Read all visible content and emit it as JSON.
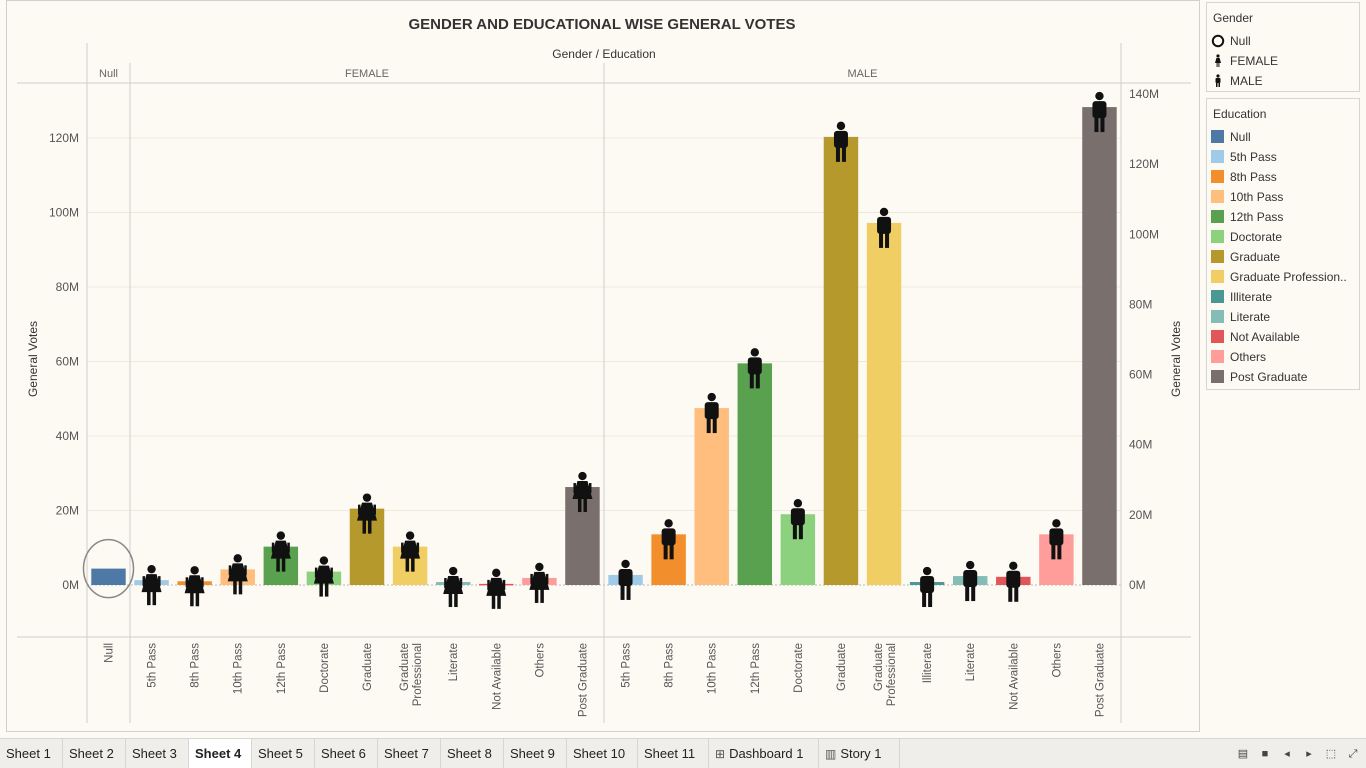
{
  "chart_data": {
    "type": "bar",
    "title": "GENDER AND EDUCATIONAL WISE GENERAL VOTES",
    "header_label": "Gender / Education",
    "ylabel": "General Votes",
    "ylim_left": [
      -13000000,
      130000000
    ],
    "left_ticks": [
      "120M",
      "100M",
      "80M",
      "60M",
      "40M",
      "20M",
      "0M"
    ],
    "left_tick_values": [
      120000000,
      100000000,
      80000000,
      60000000,
      40000000,
      20000000,
      0
    ],
    "right_ticks": [
      "140M",
      "120M",
      "100M",
      "80M",
      "60M",
      "40M",
      "20M",
      "0M"
    ],
    "right_tick_values": [
      140000000,
      120000000,
      100000000,
      80000000,
      60000000,
      40000000,
      20000000,
      0
    ],
    "grid": true,
    "legend_position": "right",
    "panes": [
      {
        "gender": "Null",
        "bars": [
          {
            "education": "Null",
            "label": "Null",
            "value": 4400000,
            "color": "#4e79a7"
          }
        ]
      },
      {
        "gender": "FEMALE",
        "bars": [
          {
            "education": "5th Pass",
            "label": "5th Pass",
            "value": 1300000,
            "color": "#a0cbe8"
          },
          {
            "education": "8th Pass",
            "label": "8th Pass",
            "value": 1000000,
            "color": "#f28e2b"
          },
          {
            "education": "10th Pass",
            "label": "10th Pass",
            "value": 4200000,
            "color": "#ffbe7d"
          },
          {
            "education": "12th Pass",
            "label": "12th Pass",
            "value": 10300000,
            "color": "#59a14f"
          },
          {
            "education": "Doctorate",
            "label": "Doctorate",
            "value": 3600000,
            "color": "#8cd17d"
          },
          {
            "education": "Graduate",
            "label": "Graduate",
            "value": 20500000,
            "color": "#b6992d"
          },
          {
            "education": "Graduate Professional",
            "label": "Graduate Professional",
            "value": 10300000,
            "color": "#f1ce63"
          },
          {
            "education": "Literate",
            "label": "Literate",
            "value": 800000,
            "color": "#86bcb6"
          },
          {
            "education": "Not Available",
            "label": "Not Available",
            "value": 300000,
            "color": "#e15759"
          },
          {
            "education": "Others",
            "label": "Others",
            "value": 1900000,
            "color": "#ff9d9a"
          },
          {
            "education": "Post Graduate",
            "label": "Post Graduate",
            "value": 26300000,
            "color": "#79706e"
          }
        ]
      },
      {
        "gender": "MALE",
        "bars": [
          {
            "education": "5th Pass",
            "label": "5th Pass",
            "value": 2700000,
            "color": "#a0cbe8"
          },
          {
            "education": "8th Pass",
            "label": "8th Pass",
            "value": 13600000,
            "color": "#f28e2b"
          },
          {
            "education": "10th Pass",
            "label": "10th Pass",
            "value": 47500000,
            "color": "#ffbe7d"
          },
          {
            "education": "12th Pass",
            "label": "12th Pass",
            "value": 59500000,
            "color": "#59a14f"
          },
          {
            "education": "Doctorate",
            "label": "Doctorate",
            "value": 19000000,
            "color": "#8cd17d"
          },
          {
            "education": "Graduate",
            "label": "Graduate",
            "value": 120300000,
            "color": "#b6992d"
          },
          {
            "education": "Graduate Professional",
            "label": "Graduate Professional",
            "value": 97200000,
            "color": "#f1ce63"
          },
          {
            "education": "Illiterate",
            "label": "Illiterate",
            "value": 800000,
            "color": "#499894"
          },
          {
            "education": "Literate",
            "label": "Literate",
            "value": 2400000,
            "color": "#86bcb6"
          },
          {
            "education": "Not Available",
            "label": "Not Available",
            "value": 2200000,
            "color": "#e15759"
          },
          {
            "education": "Others",
            "label": "Others",
            "value": 13600000,
            "color": "#ff9d9a"
          },
          {
            "education": "Post Graduate",
            "label": "Post Graduate",
            "value": 128300000,
            "color": "#79706e"
          }
        ]
      }
    ]
  },
  "legend_gender": {
    "title": "Gender",
    "items": [
      {
        "label": "Null",
        "icon": "circle-icon"
      },
      {
        "label": "FEMALE",
        "icon": "female-icon"
      },
      {
        "label": "MALE",
        "icon": "male-icon"
      }
    ]
  },
  "legend_education": {
    "title": "Education",
    "items": [
      {
        "label": "Null",
        "color": "#4e79a7"
      },
      {
        "label": "5th Pass",
        "color": "#a0cbe8"
      },
      {
        "label": "8th Pass",
        "color": "#f28e2b"
      },
      {
        "label": "10th Pass",
        "color": "#ffbe7d"
      },
      {
        "label": "12th Pass",
        "color": "#59a14f"
      },
      {
        "label": "Doctorate",
        "color": "#8cd17d"
      },
      {
        "label": "Graduate",
        "color": "#b6992d"
      },
      {
        "label": "Graduate Profession..",
        "color": "#f1ce63"
      },
      {
        "label": "Illiterate",
        "color": "#499894"
      },
      {
        "label": "Literate",
        "color": "#86bcb6"
      },
      {
        "label": "Not Available",
        "color": "#e15759"
      },
      {
        "label": "Others",
        "color": "#ff9d9a"
      },
      {
        "label": "Post Graduate",
        "color": "#79706e"
      }
    ]
  },
  "tabs": [
    {
      "label": "Sheet 1",
      "active": false,
      "icon": ""
    },
    {
      "label": "Sheet 2",
      "active": false,
      "icon": ""
    },
    {
      "label": "Sheet 3",
      "active": false,
      "icon": ""
    },
    {
      "label": "Sheet 4",
      "active": true,
      "icon": ""
    },
    {
      "label": "Sheet 5",
      "active": false,
      "icon": ""
    },
    {
      "label": "Sheet 6",
      "active": false,
      "icon": ""
    },
    {
      "label": "Sheet 7",
      "active": false,
      "icon": ""
    },
    {
      "label": "Sheet 8",
      "active": false,
      "icon": ""
    },
    {
      "label": "Sheet 9",
      "active": false,
      "icon": ""
    },
    {
      "label": "Sheet 10",
      "active": false,
      "icon": ""
    },
    {
      "label": "Sheet 11",
      "active": false,
      "icon": ""
    },
    {
      "label": "Dashboard 1",
      "active": false,
      "icon": "dashboard-icon"
    },
    {
      "label": "Story 1",
      "active": false,
      "icon": "story-icon"
    }
  ],
  "nav_icons": [
    "show-filmstrip-icon",
    "show-tabs-icon",
    "previous-sheet-icon",
    "next-sheet-icon",
    "fit-screen-icon",
    "fullscreen-icon"
  ]
}
